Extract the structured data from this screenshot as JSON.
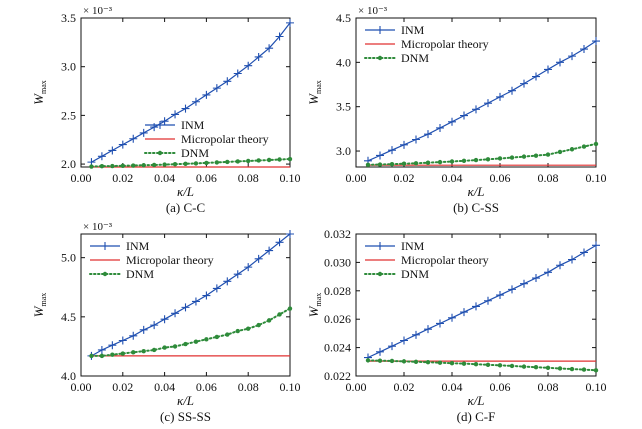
{
  "chart_data": [
    {
      "type": "line",
      "caption": "(a) C-C",
      "xlabel": "κ/L",
      "ylabel": "W",
      "ylabel_sub": "max",
      "multiplier": "× 10⁻³",
      "xlim": [
        0.0,
        0.1
      ],
      "ylim": [
        1.97,
        3.5
      ],
      "xticks": [
        "0.00",
        "0.02",
        "0.04",
        "0.06",
        "0.08",
        "0.10"
      ],
      "yticks": [
        "2.0",
        "2.5",
        "3.0",
        "3.5"
      ],
      "legend_position": "lower-right",
      "x": [
        0.005,
        0.01,
        0.015,
        0.02,
        0.025,
        0.03,
        0.035,
        0.04,
        0.045,
        0.05,
        0.055,
        0.06,
        0.065,
        0.07,
        0.075,
        0.08,
        0.085,
        0.09,
        0.095,
        0.1
      ],
      "series": [
        {
          "name": "INM",
          "color": "#1f4fb0",
          "marker": "plus",
          "style": "solid",
          "values": [
            2.02,
            2.08,
            2.14,
            2.2,
            2.26,
            2.32,
            2.38,
            2.44,
            2.51,
            2.57,
            2.64,
            2.71,
            2.78,
            2.85,
            2.93,
            3.01,
            3.1,
            3.19,
            3.31,
            3.45
          ]
        },
        {
          "name": "Micropolar theory",
          "color": "#e03030",
          "marker": "none",
          "style": "solid",
          "values": [
            1.97,
            1.97,
            1.97,
            1.97,
            1.97,
            1.97,
            1.97,
            1.97,
            1.97,
            1.97,
            1.97,
            1.97,
            1.97,
            1.97,
            1.97,
            1.97,
            1.97,
            1.97,
            1.97,
            1.97
          ]
        },
        {
          "name": "DNM",
          "color": "#2e8b3a",
          "marker": "dot",
          "style": "dotted",
          "values": [
            1.975,
            1.978,
            1.98,
            1.982,
            1.985,
            1.988,
            1.991,
            1.995,
            1.999,
            2.003,
            2.007,
            2.012,
            2.017,
            2.022,
            2.027,
            2.032,
            2.037,
            2.042,
            2.047,
            2.052
          ]
        }
      ]
    },
    {
      "type": "line",
      "caption": "(b) C-SS",
      "xlabel": "κ/L",
      "ylabel": "W",
      "ylabel_sub": "max",
      "multiplier": "× 10⁻³",
      "xlim": [
        0.0,
        0.1
      ],
      "ylim": [
        2.82,
        4.5
      ],
      "xticks": [
        "0.00",
        "0.02",
        "0.04",
        "0.06",
        "0.08",
        "0.10"
      ],
      "yticks": [
        "3.0",
        "3.5",
        "4.0",
        "4.5"
      ],
      "legend_position": "upper-left",
      "x": [
        0.005,
        0.01,
        0.015,
        0.02,
        0.025,
        0.03,
        0.035,
        0.04,
        0.045,
        0.05,
        0.055,
        0.06,
        0.065,
        0.07,
        0.075,
        0.08,
        0.085,
        0.09,
        0.095,
        0.1
      ],
      "series": [
        {
          "name": "INM",
          "color": "#1f4fb0",
          "marker": "plus",
          "style": "solid",
          "values": [
            2.89,
            2.95,
            3.01,
            3.07,
            3.13,
            3.19,
            3.26,
            3.33,
            3.4,
            3.47,
            3.54,
            3.61,
            3.68,
            3.76,
            3.84,
            3.92,
            4.0,
            4.07,
            4.15,
            4.24
          ]
        },
        {
          "name": "Micropolar theory",
          "color": "#e03030",
          "marker": "none",
          "style": "solid",
          "values": [
            2.84,
            2.84,
            2.84,
            2.84,
            2.84,
            2.84,
            2.84,
            2.84,
            2.84,
            2.84,
            2.84,
            2.84,
            2.84,
            2.84,
            2.84,
            2.84,
            2.84,
            2.84,
            2.84,
            2.84
          ]
        },
        {
          "name": "DNM",
          "color": "#2e8b3a",
          "marker": "dot",
          "style": "dotted",
          "values": [
            2.845,
            2.848,
            2.852,
            2.857,
            2.862,
            2.868,
            2.875,
            2.882,
            2.89,
            2.898,
            2.907,
            2.916,
            2.926,
            2.937,
            2.948,
            2.96,
            2.99,
            3.02,
            3.05,
            3.08
          ]
        }
      ]
    },
    {
      "type": "line",
      "caption": "(c) SS-SS",
      "xlabel": "κ/L",
      "ylabel": "W",
      "ylabel_sub": "max",
      "multiplier": "× 10⁻³",
      "xlim": [
        0.0,
        0.1
      ],
      "ylim": [
        4.0,
        5.2
      ],
      "xticks": [
        "0.00",
        "0.02",
        "0.04",
        "0.06",
        "0.08",
        "0.10"
      ],
      "yticks": [
        "4.0",
        "4.5",
        "5.0"
      ],
      "legend_position": "upper-left",
      "x": [
        0.005,
        0.01,
        0.015,
        0.02,
        0.025,
        0.03,
        0.035,
        0.04,
        0.045,
        0.05,
        0.055,
        0.06,
        0.065,
        0.07,
        0.075,
        0.08,
        0.085,
        0.09,
        0.095,
        0.1
      ],
      "series": [
        {
          "name": "INM",
          "color": "#1f4fb0",
          "marker": "plus",
          "style": "solid",
          "values": [
            4.17,
            4.22,
            4.26,
            4.3,
            4.34,
            4.39,
            4.43,
            4.48,
            4.53,
            4.58,
            4.63,
            4.68,
            4.74,
            4.8,
            4.86,
            4.92,
            4.99,
            5.06,
            5.13,
            5.2
          ]
        },
        {
          "name": "Micropolar theory",
          "color": "#e03030",
          "marker": "none",
          "style": "solid",
          "values": [
            4.17,
            4.17,
            4.17,
            4.17,
            4.17,
            4.17,
            4.17,
            4.17,
            4.17,
            4.17,
            4.17,
            4.17,
            4.17,
            4.17,
            4.17,
            4.17,
            4.17,
            4.17,
            4.17,
            4.17
          ]
        },
        {
          "name": "DNM",
          "color": "#2e8b3a",
          "marker": "dot",
          "style": "dotted",
          "values": [
            4.17,
            4.17,
            4.18,
            4.19,
            4.2,
            4.21,
            4.22,
            4.24,
            4.25,
            4.27,
            4.29,
            4.31,
            4.33,
            4.35,
            4.38,
            4.4,
            4.43,
            4.47,
            4.52,
            4.57
          ]
        }
      ]
    },
    {
      "type": "line",
      "caption": "(d) C-F",
      "xlabel": "κ/L",
      "ylabel": "W",
      "ylabel_sub": "max",
      "multiplier": "",
      "xlim": [
        0.0,
        0.1
      ],
      "ylim": [
        0.022,
        0.032
      ],
      "xticks": [
        "0.00",
        "0.02",
        "0.04",
        "0.06",
        "0.08",
        "0.10"
      ],
      "yticks": [
        "0.022",
        "0.024",
        "0.026",
        "0.028",
        "0.030",
        "0.032"
      ],
      "legend_position": "upper-left",
      "x": [
        0.005,
        0.01,
        0.015,
        0.02,
        0.025,
        0.03,
        0.035,
        0.04,
        0.045,
        0.05,
        0.055,
        0.06,
        0.065,
        0.07,
        0.075,
        0.08,
        0.085,
        0.09,
        0.095,
        0.1
      ],
      "series": [
        {
          "name": "INM",
          "color": "#1f4fb0",
          "marker": "plus",
          "style": "solid",
          "values": [
            0.0233,
            0.0237,
            0.0241,
            0.0245,
            0.0249,
            0.0253,
            0.0257,
            0.0261,
            0.0265,
            0.0269,
            0.0273,
            0.0277,
            0.0281,
            0.0285,
            0.0289,
            0.0293,
            0.0298,
            0.0302,
            0.0307,
            0.0312
          ]
        },
        {
          "name": "Micropolar theory",
          "color": "#e03030",
          "marker": "none",
          "style": "solid",
          "values": [
            0.02305,
            0.02305,
            0.02305,
            0.02305,
            0.02305,
            0.02305,
            0.02305,
            0.02305,
            0.02305,
            0.02305,
            0.02305,
            0.02305,
            0.02305,
            0.02305,
            0.02305,
            0.02305,
            0.02305,
            0.02305,
            0.02305,
            0.02305
          ]
        },
        {
          "name": "DNM",
          "color": "#2e8b3a",
          "marker": "dot",
          "style": "dotted",
          "values": [
            0.0231,
            0.02308,
            0.02306,
            0.02303,
            0.023,
            0.02297,
            0.02294,
            0.0229,
            0.02287,
            0.02283,
            0.02279,
            0.02275,
            0.02271,
            0.02266,
            0.02262,
            0.02258,
            0.02253,
            0.02249,
            0.02245,
            0.0224
          ]
        }
      ]
    }
  ]
}
